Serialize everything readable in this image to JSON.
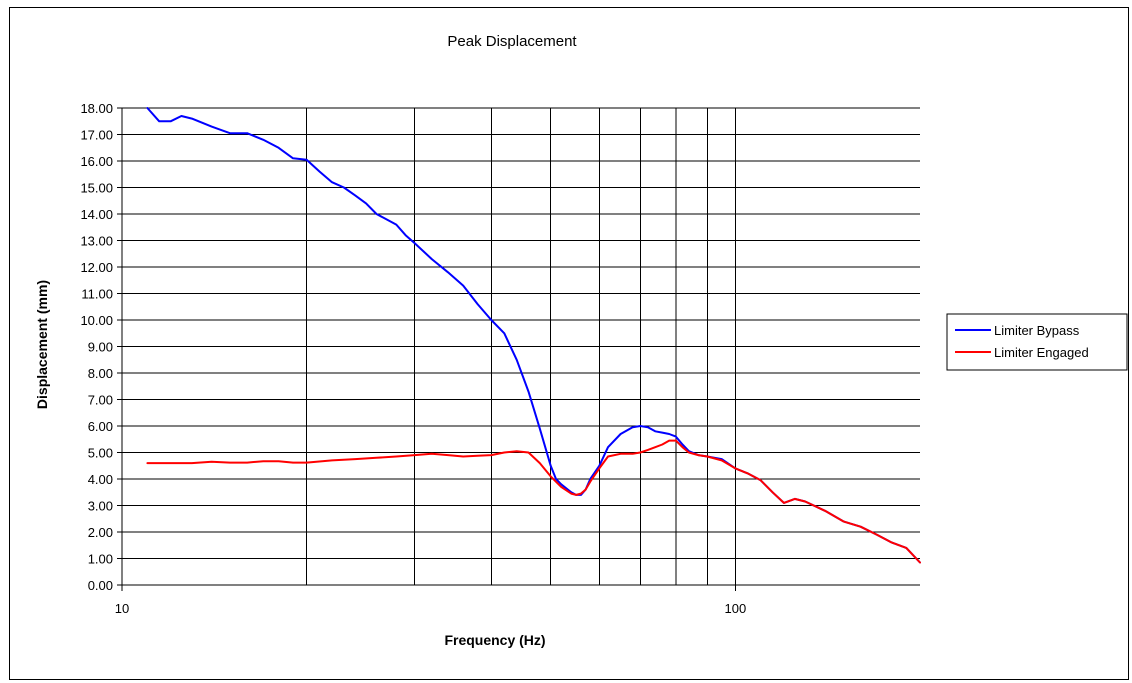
{
  "chart_data": {
    "type": "line",
    "title": "Peak Displacement",
    "xlabel": "Frequency (Hz)",
    "ylabel": "Displacement (mm)",
    "x_scale": "log",
    "xlim": [
      10,
      200
    ],
    "ylim": [
      0,
      18
    ],
    "y_step": 1,
    "x_tick_labels": [
      "10",
      "100"
    ],
    "y_tick_labels": [
      "0.00",
      "1.00",
      "2.00",
      "3.00",
      "4.00",
      "5.00",
      "6.00",
      "7.00",
      "8.00",
      "9.00",
      "10.00",
      "11.00",
      "12.00",
      "13.00",
      "14.00",
      "15.00",
      "16.00",
      "17.00",
      "18.00"
    ],
    "x_gridlines": [
      20,
      30,
      40,
      50,
      60,
      70,
      80,
      90,
      100
    ],
    "grid": true,
    "legend_position": "right",
    "series": [
      {
        "name": "Limiter Bypass",
        "color": "#0000ff",
        "points": [
          [
            11,
            18.0
          ],
          [
            11.5,
            17.5
          ],
          [
            12,
            17.5
          ],
          [
            12.5,
            17.7
          ],
          [
            13,
            17.6
          ],
          [
            14,
            17.3
          ],
          [
            15,
            17.05
          ],
          [
            16,
            17.05
          ],
          [
            17,
            16.8
          ],
          [
            18,
            16.5
          ],
          [
            19,
            16.1
          ],
          [
            20,
            16.05
          ],
          [
            21,
            15.6
          ],
          [
            22,
            15.2
          ],
          [
            23,
            15.0
          ],
          [
            24,
            14.7
          ],
          [
            25,
            14.4
          ],
          [
            26,
            14.0
          ],
          [
            28,
            13.6
          ],
          [
            29,
            13.2
          ],
          [
            30,
            12.9
          ],
          [
            32,
            12.3
          ],
          [
            34,
            11.8
          ],
          [
            36,
            11.3
          ],
          [
            38,
            10.6
          ],
          [
            40,
            10.0
          ],
          [
            42,
            9.5
          ],
          [
            44,
            8.5
          ],
          [
            46,
            7.3
          ],
          [
            48,
            5.9
          ],
          [
            50,
            4.5
          ],
          [
            51,
            4.0
          ],
          [
            52,
            3.8
          ],
          [
            53,
            3.65
          ],
          [
            54,
            3.5
          ],
          [
            55,
            3.4
          ],
          [
            56,
            3.4
          ],
          [
            57,
            3.6
          ],
          [
            58,
            4.0
          ],
          [
            60,
            4.5
          ],
          [
            62,
            5.2
          ],
          [
            65,
            5.7
          ],
          [
            68,
            5.95
          ],
          [
            70,
            6.0
          ],
          [
            72,
            5.95
          ],
          [
            74,
            5.8
          ],
          [
            76,
            5.75
          ],
          [
            78,
            5.7
          ],
          [
            80,
            5.6
          ],
          [
            82,
            5.3
          ],
          [
            84,
            5.05
          ],
          [
            87,
            4.9
          ],
          [
            90,
            4.85
          ],
          [
            95,
            4.75
          ],
          [
            100,
            4.4
          ],
          [
            105,
            4.2
          ],
          [
            110,
            3.95
          ],
          [
            115,
            3.5
          ],
          [
            120,
            3.1
          ],
          [
            125,
            3.25
          ],
          [
            130,
            3.15
          ],
          [
            140,
            2.8
          ],
          [
            150,
            2.4
          ],
          [
            160,
            2.2
          ],
          [
            170,
            1.9
          ],
          [
            180,
            1.6
          ],
          [
            190,
            1.4
          ],
          [
            200,
            0.85
          ]
        ]
      },
      {
        "name": "Limiter Engaged",
        "color": "#ff0000",
        "points": [
          [
            11,
            4.6
          ],
          [
            12,
            4.6
          ],
          [
            13,
            4.6
          ],
          [
            14,
            4.65
          ],
          [
            15,
            4.62
          ],
          [
            16,
            4.62
          ],
          [
            17,
            4.67
          ],
          [
            18,
            4.67
          ],
          [
            19,
            4.62
          ],
          [
            20,
            4.62
          ],
          [
            22,
            4.7
          ],
          [
            24,
            4.75
          ],
          [
            26,
            4.8
          ],
          [
            28,
            4.85
          ],
          [
            30,
            4.9
          ],
          [
            32,
            4.95
          ],
          [
            34,
            4.9
          ],
          [
            36,
            4.85
          ],
          [
            38,
            4.88
          ],
          [
            40,
            4.9
          ],
          [
            42,
            5.0
          ],
          [
            44,
            5.05
          ],
          [
            46,
            5.0
          ],
          [
            48,
            4.6
          ],
          [
            50,
            4.1
          ],
          [
            52,
            3.7
          ],
          [
            54,
            3.45
          ],
          [
            55,
            3.4
          ],
          [
            56,
            3.45
          ],
          [
            57,
            3.6
          ],
          [
            58,
            3.9
          ],
          [
            60,
            4.4
          ],
          [
            62,
            4.85
          ],
          [
            65,
            4.95
          ],
          [
            68,
            4.95
          ],
          [
            70,
            5.0
          ],
          [
            72,
            5.1
          ],
          [
            74,
            5.2
          ],
          [
            76,
            5.3
          ],
          [
            78,
            5.45
          ],
          [
            80,
            5.45
          ],
          [
            82,
            5.2
          ],
          [
            84,
            5.0
          ],
          [
            87,
            4.9
          ],
          [
            90,
            4.85
          ],
          [
            95,
            4.7
          ],
          [
            100,
            4.4
          ],
          [
            105,
            4.2
          ],
          [
            110,
            3.95
          ],
          [
            115,
            3.5
          ],
          [
            120,
            3.1
          ],
          [
            125,
            3.25
          ],
          [
            130,
            3.15
          ],
          [
            140,
            2.8
          ],
          [
            150,
            2.4
          ],
          [
            160,
            2.2
          ],
          [
            170,
            1.9
          ],
          [
            180,
            1.6
          ],
          [
            190,
            1.4
          ],
          [
            200,
            0.85
          ]
        ]
      }
    ]
  }
}
